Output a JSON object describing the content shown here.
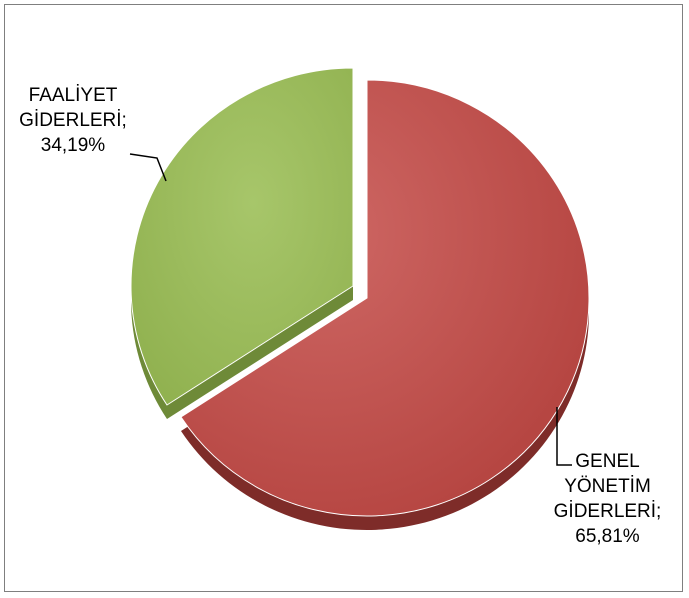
{
  "chart_data": {
    "type": "pie",
    "title": "",
    "slices": [
      {
        "category": "GENEL YÖNETİM GİDERLERİ",
        "value": 65.81,
        "value_text": "65,81%",
        "color": "#C0504D"
      },
      {
        "category": "FAALİYET GİDERLERİ",
        "value": 34.19,
        "value_text": "34,19%",
        "color": "#9BBB59"
      }
    ],
    "labels": {
      "genel": {
        "lines": [
          "GENEL",
          "YÖNETİM",
          "GİDERLERİ;",
          "65,81%"
        ]
      },
      "faaliyet": {
        "lines": [
          "FAALİYET",
          "GİDERLERİ;",
          "34,19%"
        ]
      }
    },
    "style": "3d-exploded"
  }
}
